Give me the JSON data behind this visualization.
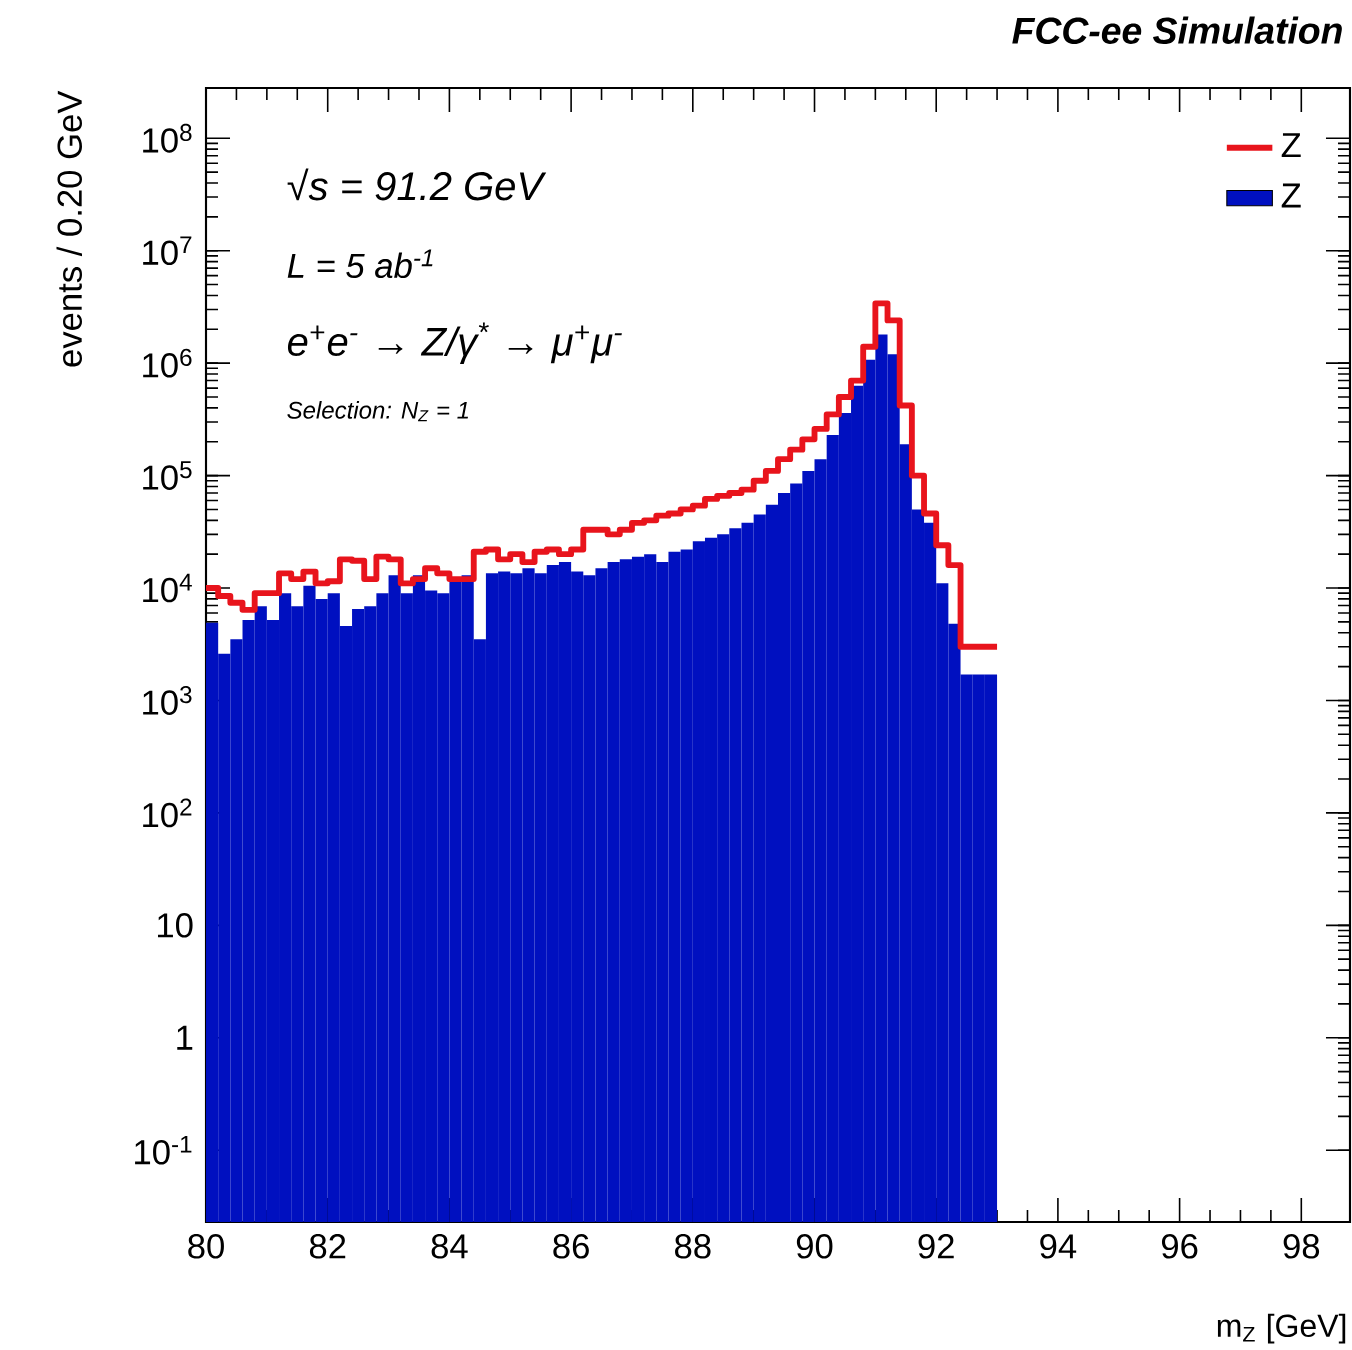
{
  "chart_data": {
    "type": "histogram",
    "title": "FCC-ee Simulation",
    "xlabel": "m$_{Z}$ [GeV]",
    "ylabel": "events / 0.20 GeV",
    "annotations": [
      "√s = 91.2 GeV",
      "L = 5 ab$^{-1}$",
      "e$^{+}$e$^{-}$ → Z/γ$^{*}$ → μ$^{+}$μ$^{-}$",
      "Selection: N$_{Z}$ = 1"
    ],
    "bins": [
      80.0,
      80.2,
      80.4,
      80.6,
      80.8,
      81.0,
      81.2,
      81.4,
      81.6,
      81.8,
      82.0,
      82.2,
      82.4,
      82.6,
      82.8,
      83.0,
      83.2,
      83.4,
      83.6,
      83.8,
      84.0,
      84.2,
      84.4,
      84.6,
      84.8,
      85.0,
      85.2,
      85.4,
      85.6,
      85.8,
      86.0,
      86.2,
      86.4,
      86.6,
      86.8,
      87.0,
      87.2,
      87.4,
      87.6,
      87.8,
      88.0,
      88.2,
      88.4,
      88.6,
      88.8,
      89.0,
      89.2,
      89.4,
      89.6,
      89.8,
      90.0,
      90.2,
      90.4,
      90.6,
      90.8,
      91.0,
      91.2,
      91.4,
      91.6,
      91.8,
      92.0,
      92.2,
      92.4,
      92.6,
      92.8,
      93.0
    ],
    "series": [
      {
        "name": "Z",
        "type": "step",
        "color": "#e8141c",
        "x": [
          80.0,
          80.2,
          80.4,
          80.6,
          80.8,
          81.0,
          81.2,
          81.4,
          81.6,
          81.8,
          82.0,
          82.2,
          82.4,
          82.6,
          82.8,
          83.0,
          83.2,
          83.4,
          83.6,
          83.8,
          84.0,
          84.2,
          84.4,
          84.6,
          84.8,
          85.0,
          85.2,
          85.4,
          85.6,
          85.8,
          86.0,
          86.2,
          86.4,
          86.6,
          86.8,
          87.0,
          87.2,
          87.4,
          87.6,
          87.8,
          88.0,
          88.2,
          88.4,
          88.6,
          88.8,
          89.0,
          89.2,
          89.4,
          89.6,
          89.8,
          90.0,
          90.2,
          90.4,
          90.6,
          90.8,
          91.0,
          91.2,
          91.4,
          91.6,
          91.8,
          92.0,
          92.2,
          92.4,
          92.6,
          92.8,
          93.0
        ],
        "values": [
          10000,
          8500,
          7400,
          6400,
          9000,
          9000,
          13500,
          12000,
          14000,
          11000,
          11500,
          18000,
          17500,
          12000,
          19000,
          18000,
          11000,
          12000,
          15000,
          13500,
          12000,
          12000,
          21000,
          22000,
          18000,
          20000,
          17000,
          21000,
          22000,
          20000,
          22000,
          33000,
          33000,
          30000,
          33000,
          38000,
          40000,
          44000,
          46000,
          50000,
          54000,
          62000,
          66000,
          70000,
          75000,
          90000,
          110000,
          140000,
          170000,
          210000,
          260000,
          350000,
          500000,
          700000,
          1400000,
          3400000,
          2400000,
          420000,
          100000,
          46000,
          24000,
          16000,
          3000,
          3000,
          3000,
          3000
        ]
      },
      {
        "name": "Z",
        "color": "#0010c0",
        "values": [
          4900,
          2600,
          3500,
          5200,
          6900,
          5200,
          9000,
          6900,
          10500,
          8000,
          9000,
          4600,
          6500,
          6900,
          9000,
          13000,
          9000,
          13000,
          9500,
          9000,
          12000,
          13000,
          3500,
          13500,
          14000,
          13500,
          15000,
          13500,
          16000,
          17000,
          14000,
          13000,
          15000,
          17000,
          18000,
          19000,
          20000,
          17000,
          21000,
          22000,
          26000,
          28000,
          30000,
          34000,
          38000,
          45000,
          55000,
          70000,
          85000,
          110000,
          140000,
          230000,
          360000,
          630000,
          1070000,
          1800000,
          1200000,
          190000,
          50000,
          38000,
          11000,
          4800,
          1700,
          1700,
          1700
        ]
      }
    ],
    "xlim": [
      80,
      98.8
    ],
    "ylim": [
      0.023,
      280000000
    ],
    "log": "y",
    "xticks": [
      80,
      82,
      84,
      86,
      88,
      90,
      92,
      94,
      96,
      98
    ],
    "yticks": [
      {
        "value": 0.1,
        "label": "10$^{-1}$"
      },
      1,
      10,
      {
        "value": 100,
        "label": "10$^{2}$"
      },
      {
        "value": 1000,
        "label": "10$^{3}$"
      },
      {
        "value": 10000,
        "label": "10$^{4}$"
      },
      {
        "value": 100000,
        "label": "10$^{5}$"
      },
      {
        "value": 1000000,
        "label": "10$^{6}$"
      },
      {
        "value": 10000000,
        "label": "10$^{7}$"
      },
      {
        "value": 100000000,
        "label": "10$^{8}$"
      }
    ],
    "legend": "top right",
    "grid": false
  }
}
